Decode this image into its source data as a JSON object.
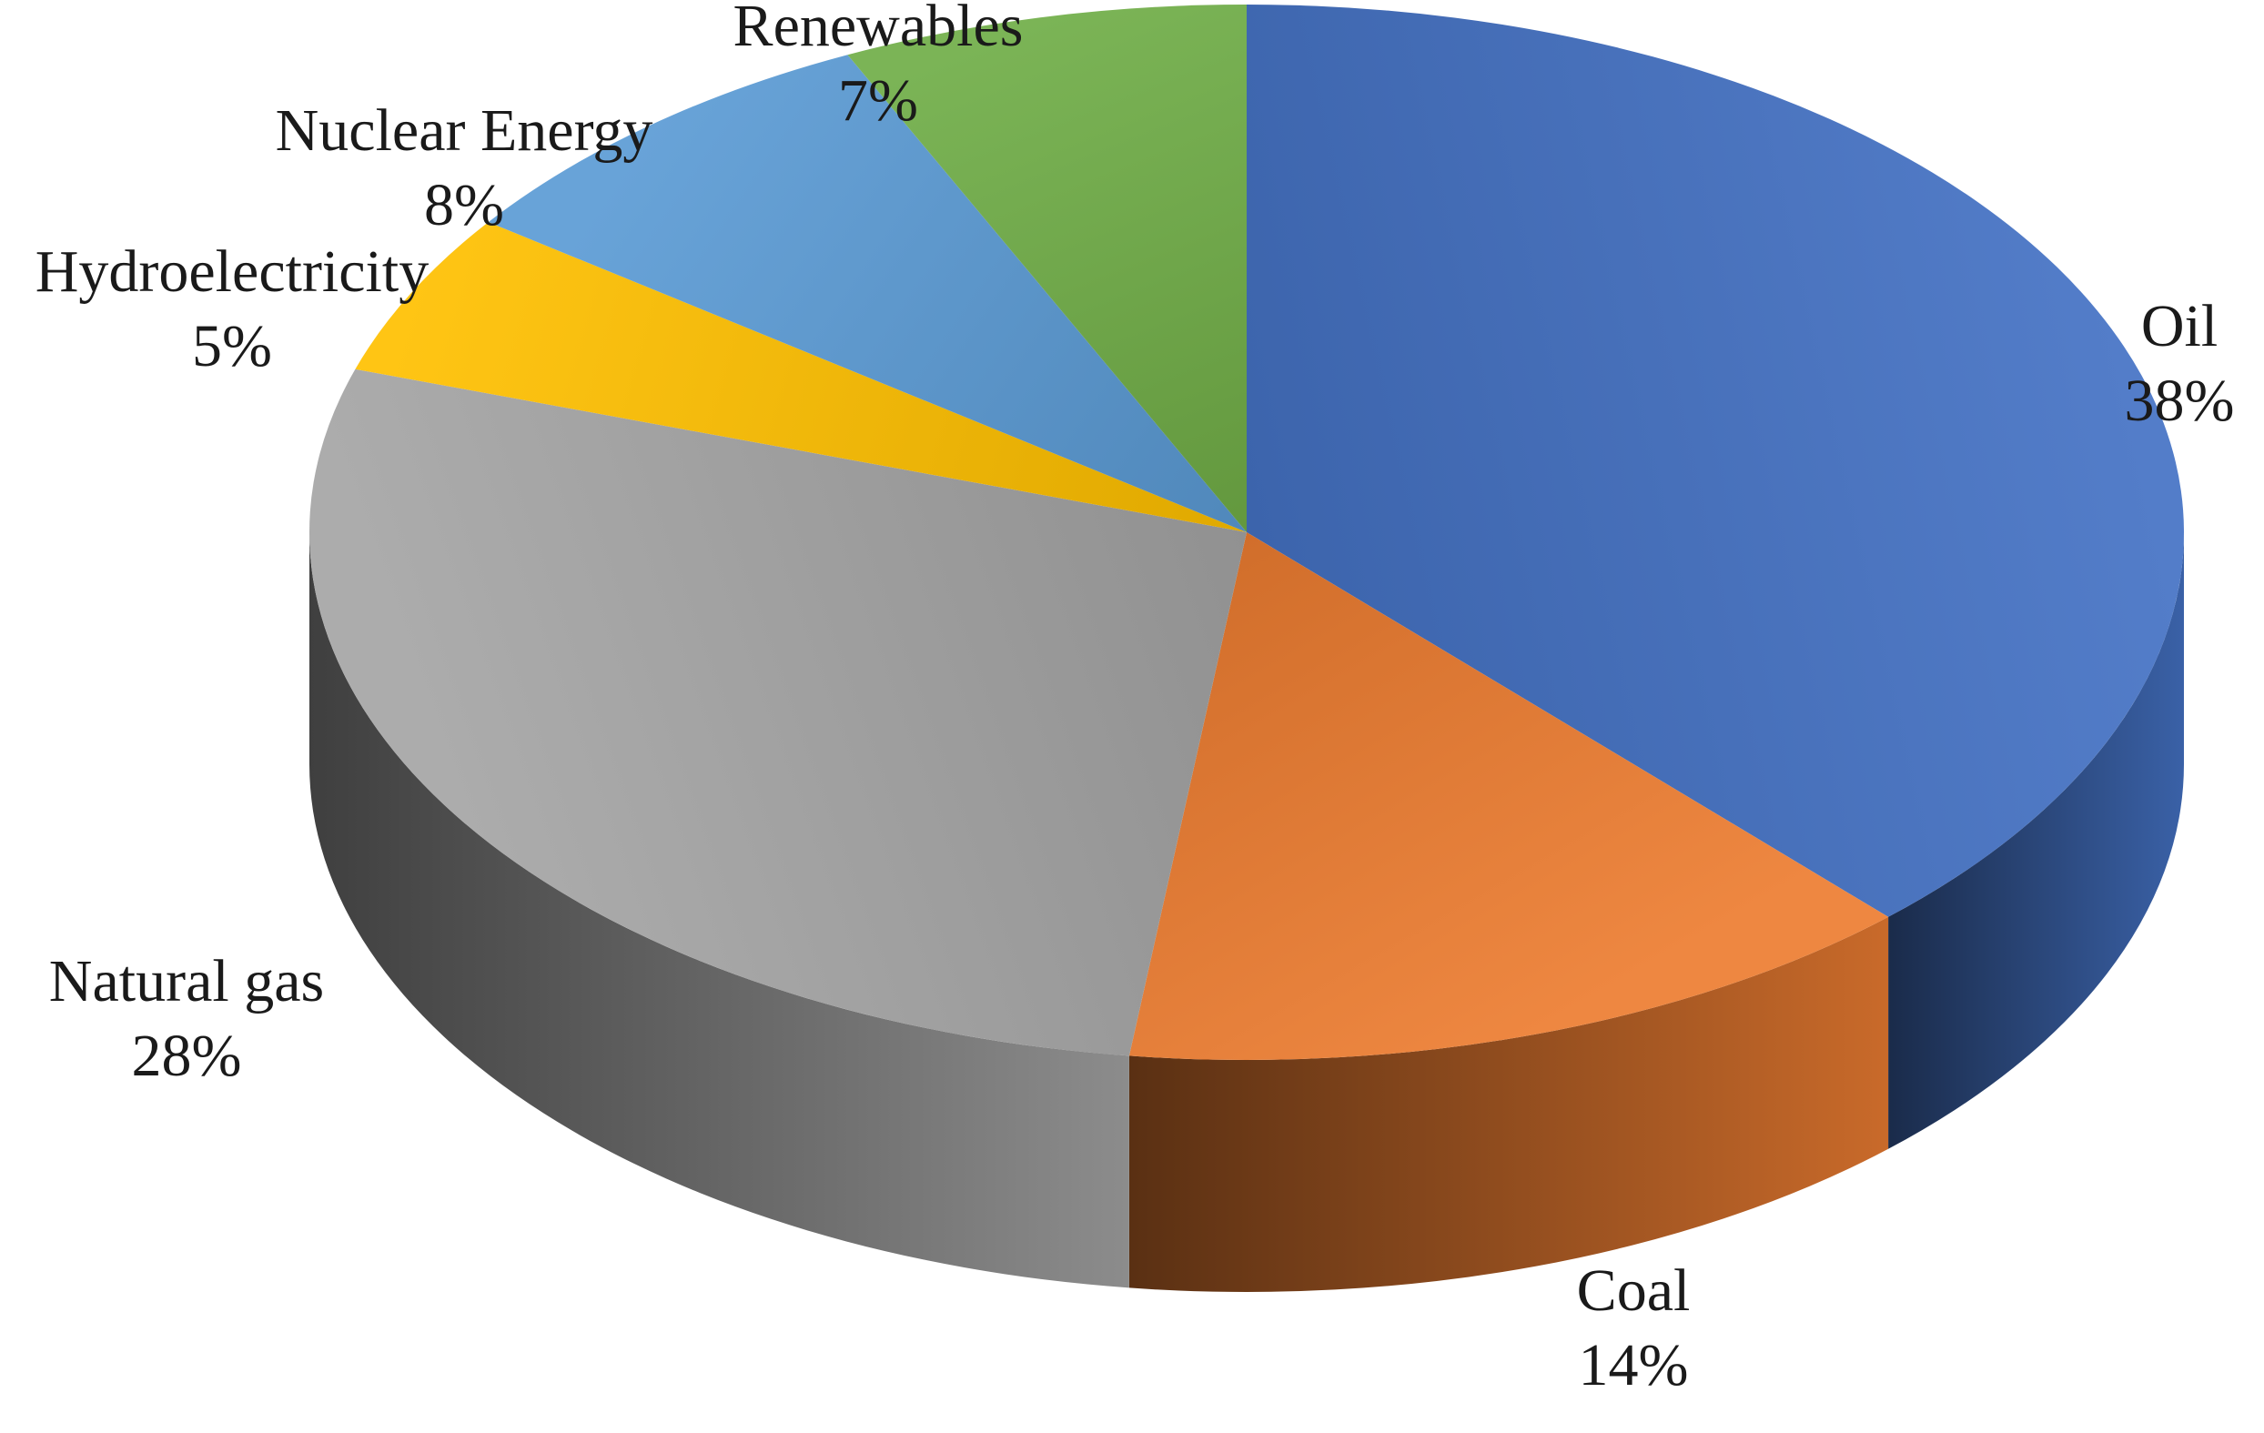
{
  "chart_data": {
    "type": "pie",
    "title": "",
    "style": "3d",
    "labels_shown": "outside, category name with percentage",
    "slices": [
      {
        "label": "Oil",
        "value": 38,
        "value_label": "38%",
        "color": "#4472C4"
      },
      {
        "label": "Coal",
        "value": 14,
        "value_label": "14%",
        "color": "#ED7D31"
      },
      {
        "label": "Natural gas",
        "value": 28,
        "value_label": "28%",
        "color": "#A5A5A5"
      },
      {
        "label": "Hydroelectricity",
        "value": 5,
        "value_label": "5%",
        "color": "#FFC000"
      },
      {
        "label": "Nuclear Energy",
        "value": 8,
        "value_label": "8%",
        "color": "#5B9BD5"
      },
      {
        "label": "Renewables",
        "value": 7,
        "value_label": "7%",
        "color": "#70AD47"
      }
    ]
  }
}
